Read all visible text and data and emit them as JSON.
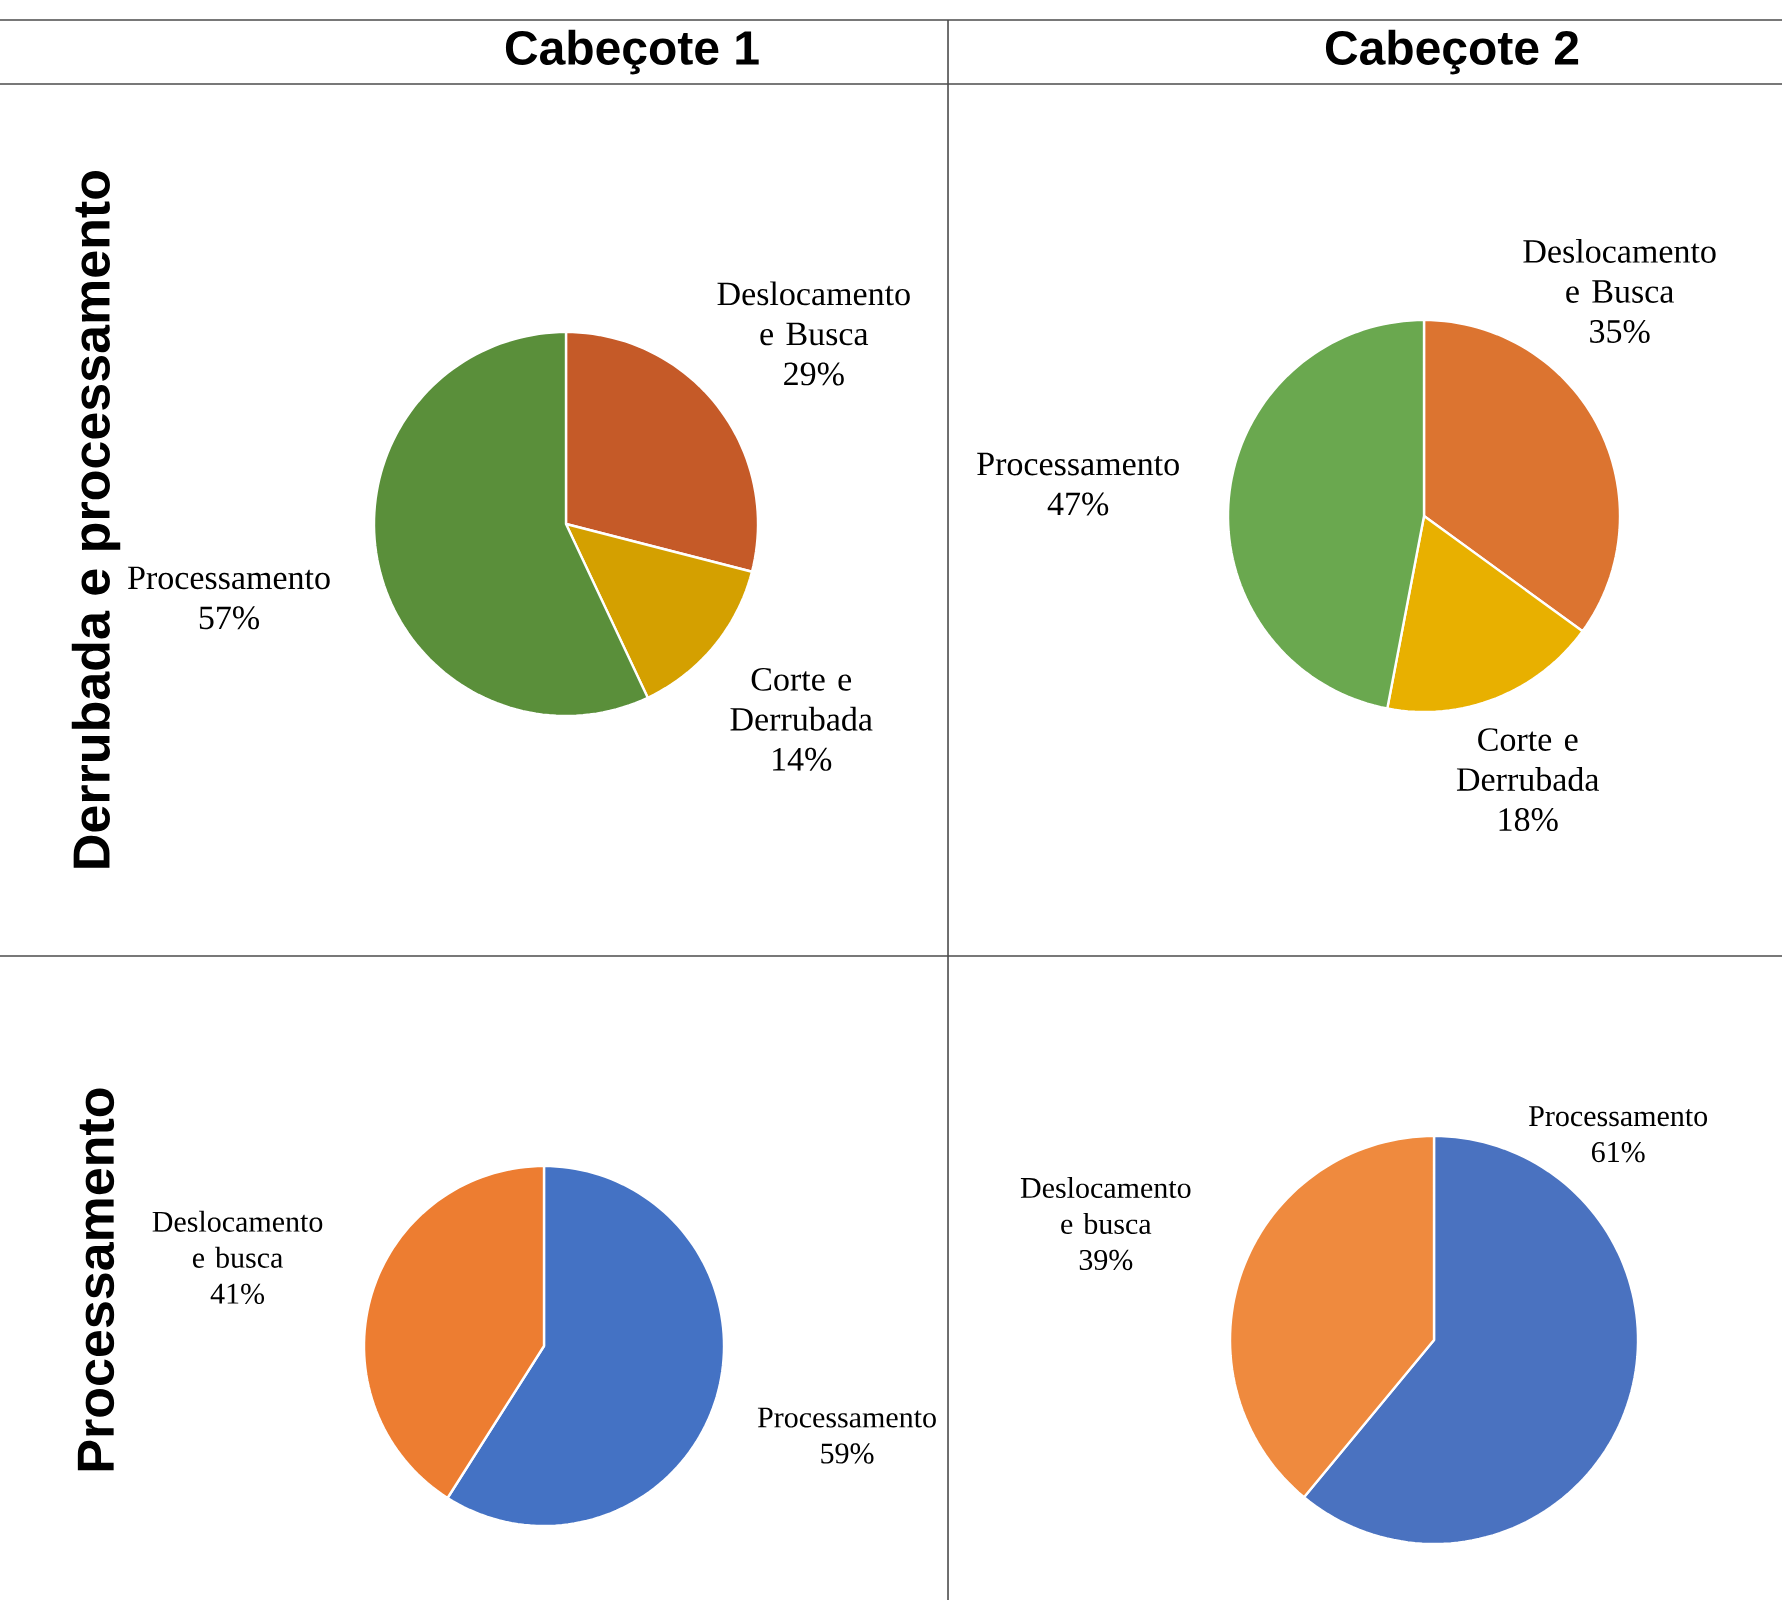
{
  "chart_data": [
    {
      "type": "pie",
      "title": "Cabeçote 1",
      "ylabel": "Derrubada e processamento",
      "categories": [
        "Deslocamento e Busca",
        "Corte e Derrubada",
        "Processamento"
      ],
      "values": [
        29,
        14,
        57
      ],
      "value_labels": [
        "29%",
        "14%",
        "57%"
      ],
      "colors": [
        "#c55a28",
        "#d4a000",
        "#5a8f3a"
      ]
    },
    {
      "type": "pie",
      "title": "Cabeçote 2",
      "categories": [
        "Deslocamento e Busca",
        "Corte e Derrubada",
        "Processamento"
      ],
      "values": [
        35,
        18,
        47
      ],
      "value_labels": [
        "35%",
        "18%",
        "47%"
      ],
      "colors": [
        "#dc7430",
        "#e8b000",
        "#6aa84f"
      ]
    },
    {
      "type": "pie",
      "ylabel": "Processamento",
      "categories": [
        "Processamento",
        "Deslocamento e busca"
      ],
      "values": [
        59,
        41
      ],
      "value_labels": [
        "59%",
        "41%"
      ],
      "colors": [
        "#4472c4",
        "#ed7d31"
      ]
    },
    {
      "type": "pie",
      "categories": [
        "Processamento",
        "Deslocamento e busca"
      ],
      "values": [
        61,
        39
      ],
      "value_labels": [
        "61%",
        "39%"
      ],
      "colors": [
        "#4a72c0",
        "#ef8a3e"
      ]
    }
  ]
}
